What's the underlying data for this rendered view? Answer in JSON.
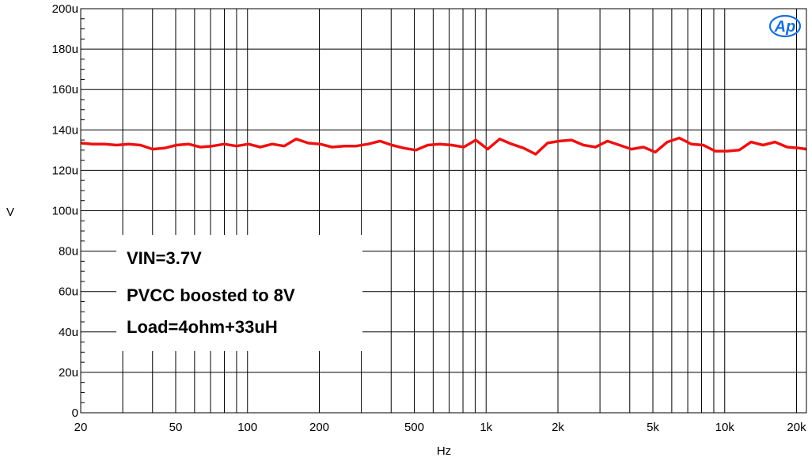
{
  "chart_data": {
    "type": "line",
    "xscale": "log",
    "xlim": [
      20,
      22000
    ],
    "ylim": [
      0,
      200
    ],
    "xlabel": "Hz",
    "ylabel": "V",
    "grid": true,
    "x_tick_labels": [
      {
        "value": 20,
        "label": "20"
      },
      {
        "value": 50,
        "label": "50"
      },
      {
        "value": 100,
        "label": "100"
      },
      {
        "value": 200,
        "label": "200"
      },
      {
        "value": 500,
        "label": "500"
      },
      {
        "value": 1000,
        "label": "1k"
      },
      {
        "value": 2000,
        "label": "2k"
      },
      {
        "value": 5000,
        "label": "5k"
      },
      {
        "value": 10000,
        "label": "10k"
      },
      {
        "value": 20000,
        "label": "20k"
      }
    ],
    "y_tick_labels": [
      {
        "value": 0,
        "label": "0"
      },
      {
        "value": 20,
        "label": "20u"
      },
      {
        "value": 40,
        "label": "40u"
      },
      {
        "value": 60,
        "label": "60u"
      },
      {
        "value": 80,
        "label": "80u"
      },
      {
        "value": 100,
        "label": "100u"
      },
      {
        "value": 120,
        "label": "120u"
      },
      {
        "value": 140,
        "label": "140u"
      },
      {
        "value": 160,
        "label": "160u"
      },
      {
        "value": 180,
        "label": "180u"
      },
      {
        "value": 200,
        "label": "200u"
      }
    ],
    "annotations": [
      "VIN=3.7V",
      "PVCC boosted to 8V",
      "Load=4ohm+33uH"
    ],
    "logo_text": "Ap",
    "series": [
      {
        "color": "#ee1111",
        "x": [
          20,
          22.4,
          25.2,
          28.3,
          31.7,
          35.6,
          40,
          44.9,
          50.4,
          56.6,
          63.5,
          71.3,
          80,
          89.8,
          100.8,
          113.1,
          127,
          142.5,
          160,
          179.5,
          201.5,
          226.2,
          253.9,
          285,
          320,
          359,
          403,
          452,
          508,
          570,
          640,
          718,
          806,
          905,
          1016,
          1140,
          1280,
          1437,
          1613,
          1810,
          2032,
          2281,
          2560,
          2874,
          3225,
          3620,
          4064,
          4561,
          5120,
          5747,
          6451,
          7241,
          8127,
          9123,
          10240,
          11494,
          12902,
          14482,
          16255,
          18246,
          20480,
          22000
        ],
        "y": [
          133.5,
          133,
          133,
          132.5,
          133,
          132.5,
          130.5,
          131,
          132.5,
          133,
          131.5,
          132,
          133,
          132,
          133,
          131.5,
          133,
          132,
          135.5,
          133.5,
          133,
          131.5,
          132,
          132,
          133,
          134.5,
          132.5,
          131,
          130,
          132.5,
          133,
          132.5,
          131.5,
          135,
          130.5,
          135.5,
          133,
          131,
          128,
          133.5,
          134.5,
          135,
          132.5,
          131.5,
          134.5,
          132.5,
          130.5,
          131.5,
          129,
          134,
          136,
          133,
          132.5,
          129.5,
          129.5,
          130,
          134,
          132.5,
          134,
          131.5,
          131,
          130.5
        ]
      }
    ]
  }
}
